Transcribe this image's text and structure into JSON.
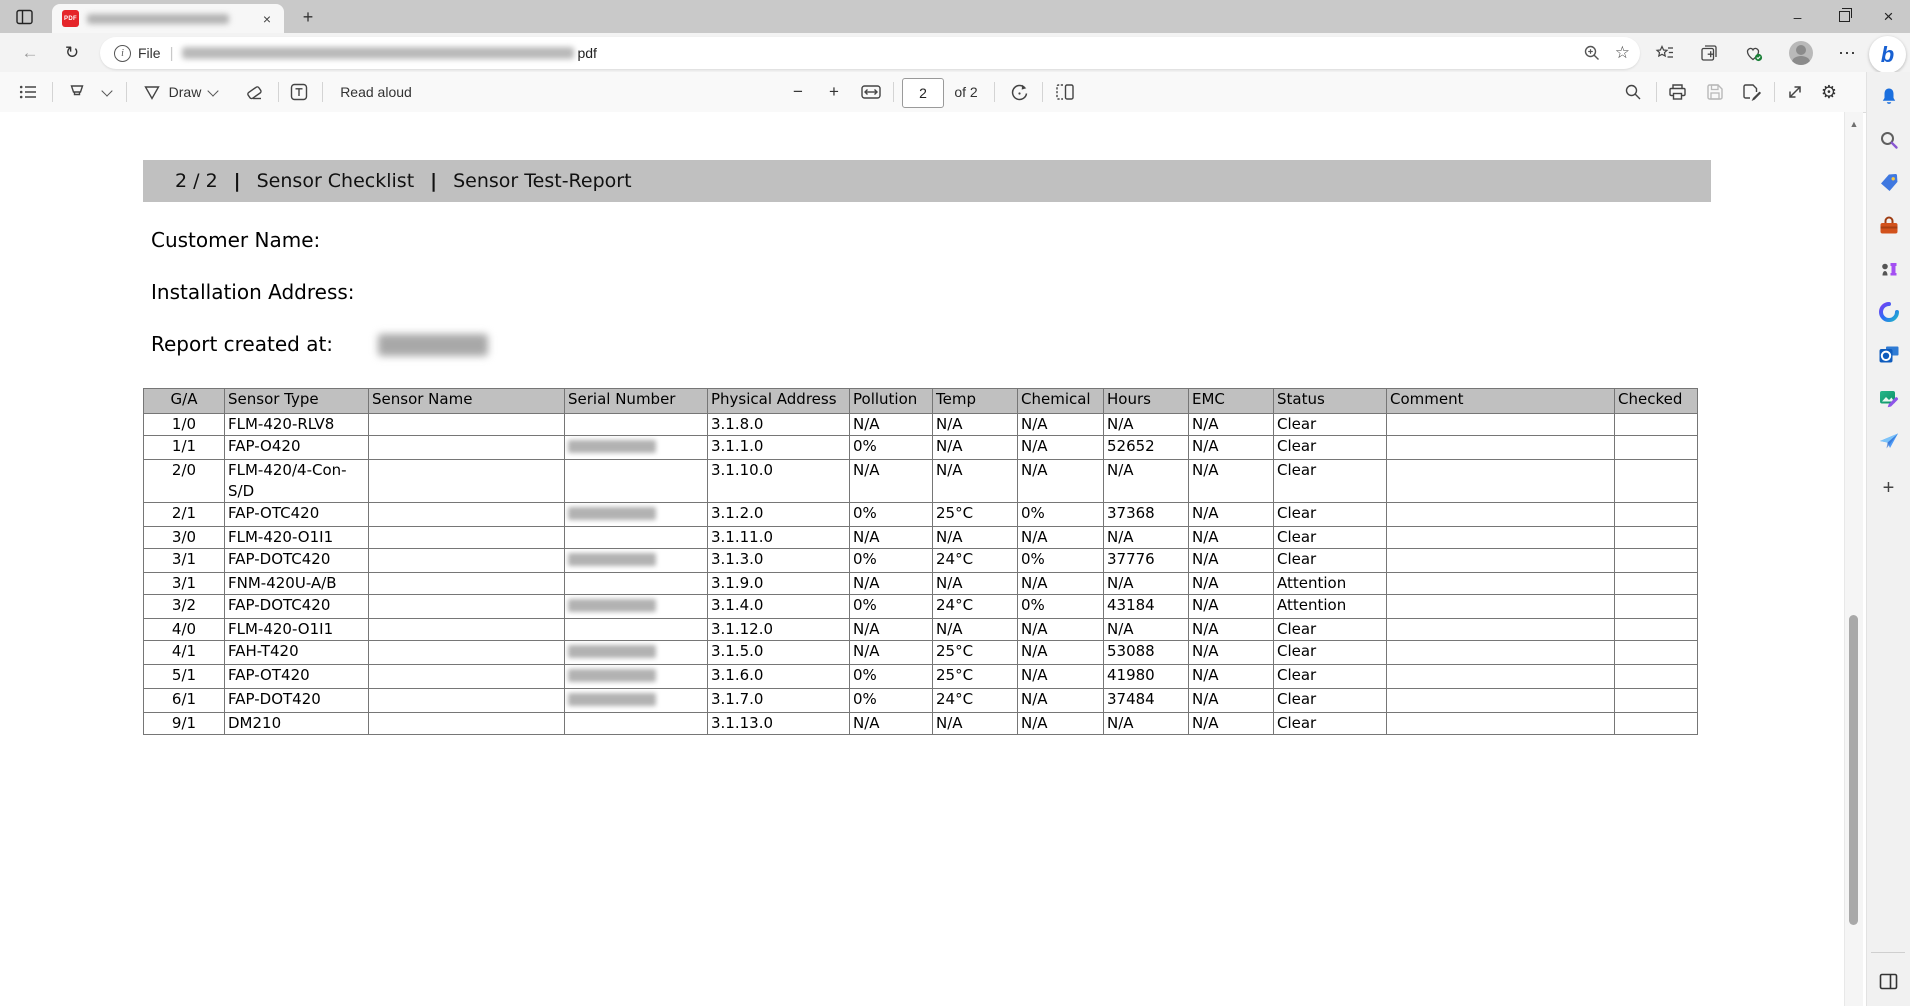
{
  "browser": {
    "window_controls": {
      "minimize": "–",
      "close": "×"
    },
    "tab": {
      "favicon_label": "PDF",
      "close_glyph": "×"
    },
    "new_tab_glyph": "+",
    "nav": {
      "back_glyph": "←",
      "refresh_glyph": "↻"
    },
    "address_bar": {
      "file_badge": "File",
      "badge_info_glyph": "i",
      "separator": "|",
      "url_visible_suffix": "pdf",
      "favorite_glyph": "☆"
    },
    "menu_dots_glyph": "⋯",
    "bing_logo_glyph": "b"
  },
  "pdf_toolbar": {
    "draw_label": "Draw",
    "read_aloud_label": "Read aloud",
    "zoom_out_glyph": "−",
    "zoom_in_glyph": "+",
    "page_input_value": "2",
    "page_count_label": "of 2",
    "settings_glyph": "⚙"
  },
  "scrollbar": {
    "up_glyph": "▲"
  },
  "sidebar": {
    "add_glyph": "+"
  },
  "doc": {
    "header": {
      "page": "2 / 2",
      "pipe": "|",
      "part1": "Sensor Checklist",
      "part2": "Sensor Test-Report"
    },
    "customer_label": "Customer Name:",
    "installation_label": "Installation Address:",
    "report_created_label": "Report created at:",
    "table": {
      "columns": [
        "G/A",
        "Sensor Type",
        "Sensor Name",
        "Serial Number",
        "Physical Address",
        "Pollution",
        "Temp",
        "Chemical",
        "Hours",
        "EMC",
        "Status",
        "Comment",
        "Checked"
      ],
      "rows": [
        {
          "ga": "1/0",
          "sensor_type": "FLM-420-RLV8",
          "sensor_name": "",
          "serial_redacted": false,
          "physical_address": "3.1.8.0",
          "pollution": "N/A",
          "temp": "N/A",
          "chemical": "N/A",
          "hours": "N/A",
          "emc": "N/A",
          "status": "Clear",
          "comment": "",
          "checked": ""
        },
        {
          "ga": "1/1",
          "sensor_type": "FAP-O420",
          "sensor_name": "",
          "serial_redacted": true,
          "physical_address": "3.1.1.0",
          "pollution": "0%",
          "temp": "N/A",
          "chemical": "N/A",
          "hours": "52652",
          "emc": "N/A",
          "status": "Clear",
          "comment": "",
          "checked": ""
        },
        {
          "ga": "2/0",
          "sensor_type": "FLM-420/4-Con-S/D",
          "sensor_name": "",
          "serial_redacted": false,
          "physical_address": "3.1.10.0",
          "pollution": "N/A",
          "temp": "N/A",
          "chemical": "N/A",
          "hours": "N/A",
          "emc": "N/A",
          "status": "Clear",
          "comment": "",
          "checked": ""
        },
        {
          "ga": "2/1",
          "sensor_type": "FAP-OTC420",
          "sensor_name": "",
          "serial_redacted": true,
          "physical_address": "3.1.2.0",
          "pollution": "0%",
          "temp": "25°C",
          "chemical": "0%",
          "hours": "37368",
          "emc": "N/A",
          "status": "Clear",
          "comment": "",
          "checked": ""
        },
        {
          "ga": "3/0",
          "sensor_type": "FLM-420-O1I1",
          "sensor_name": "",
          "serial_redacted": false,
          "physical_address": "3.1.11.0",
          "pollution": "N/A",
          "temp": "N/A",
          "chemical": "N/A",
          "hours": "N/A",
          "emc": "N/A",
          "status": "Clear",
          "comment": "",
          "checked": ""
        },
        {
          "ga": "3/1",
          "sensor_type": "FAP-DOTC420",
          "sensor_name": "",
          "serial_redacted": true,
          "physical_address": "3.1.3.0",
          "pollution": "0%",
          "temp": "24°C",
          "chemical": "0%",
          "hours": "37776",
          "emc": "N/A",
          "status": "Clear",
          "comment": "",
          "checked": ""
        },
        {
          "ga": "3/1",
          "sensor_type": "FNM-420U-A/B",
          "sensor_name": "",
          "serial_redacted": false,
          "physical_address": "3.1.9.0",
          "pollution": "N/A",
          "temp": "N/A",
          "chemical": "N/A",
          "hours": "N/A",
          "emc": "N/A",
          "status": "Attention",
          "comment": "",
          "checked": ""
        },
        {
          "ga": "3/2",
          "sensor_type": "FAP-DOTC420",
          "sensor_name": "",
          "serial_redacted": true,
          "physical_address": "3.1.4.0",
          "pollution": "0%",
          "temp": "24°C",
          "chemical": "0%",
          "hours": "43184",
          "emc": "N/A",
          "status": "Attention",
          "comment": "",
          "checked": ""
        },
        {
          "ga": "4/0",
          "sensor_type": "FLM-420-O1I1",
          "sensor_name": "",
          "serial_redacted": false,
          "physical_address": "3.1.12.0",
          "pollution": "N/A",
          "temp": "N/A",
          "chemical": "N/A",
          "hours": "N/A",
          "emc": "N/A",
          "status": "Clear",
          "comment": "",
          "checked": ""
        },
        {
          "ga": "4/1",
          "sensor_type": "FAH-T420",
          "sensor_name": "",
          "serial_redacted": true,
          "physical_address": "3.1.5.0",
          "pollution": "N/A",
          "temp": "25°C",
          "chemical": "N/A",
          "hours": "53088",
          "emc": "N/A",
          "status": "Clear",
          "comment": "",
          "checked": ""
        },
        {
          "ga": "5/1",
          "sensor_type": "FAP-OT420",
          "sensor_name": "",
          "serial_redacted": true,
          "physical_address": "3.1.6.0",
          "pollution": "0%",
          "temp": "25°C",
          "chemical": "N/A",
          "hours": "41980",
          "emc": "N/A",
          "status": "Clear",
          "comment": "",
          "checked": ""
        },
        {
          "ga": "6/1",
          "sensor_type": "FAP-DOT420",
          "sensor_name": "",
          "serial_redacted": true,
          "physical_address": "3.1.7.0",
          "pollution": "0%",
          "temp": "24°C",
          "chemical": "N/A",
          "hours": "37484",
          "emc": "N/A",
          "status": "Clear",
          "comment": "",
          "checked": ""
        },
        {
          "ga": "9/1",
          "sensor_type": "DM210",
          "sensor_name": "",
          "serial_redacted": false,
          "physical_address": "3.1.13.0",
          "pollution": "N/A",
          "temp": "N/A",
          "chemical": "N/A",
          "hours": "N/A",
          "emc": "N/A",
          "status": "Clear",
          "comment": "",
          "checked": ""
        }
      ]
    }
  }
}
